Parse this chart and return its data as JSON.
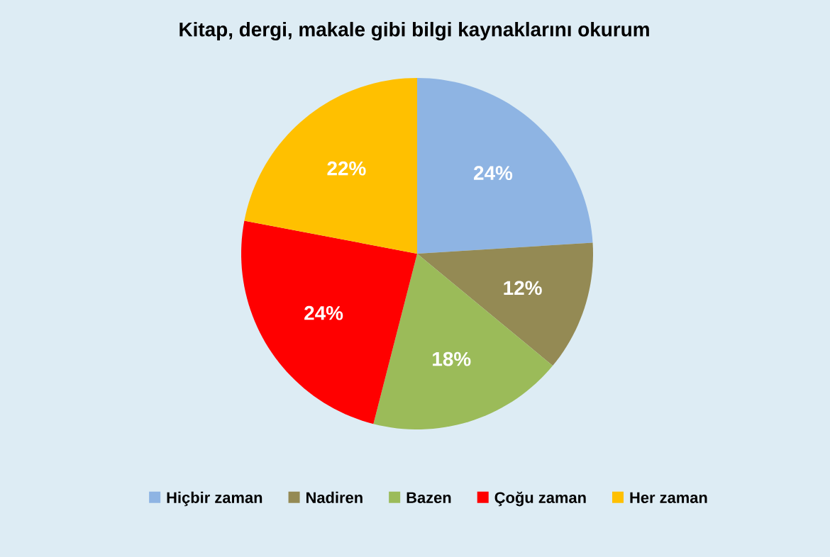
{
  "chart_data": {
    "type": "pie",
    "title": "Kitap, dergi, makale gibi bilgi kaynaklarını okurum",
    "categories": [
      "Hiçbir zaman",
      "Nadiren",
      "Bazen",
      "Çoğu zaman",
      "Her zaman"
    ],
    "values": [
      24,
      12,
      18,
      24,
      22
    ],
    "value_labels": [
      "24%",
      "12%",
      "18%",
      "24%",
      "22%"
    ],
    "colors": [
      "#8eb4e3",
      "#948a54",
      "#9bbb59",
      "#ff0000",
      "#ffc000"
    ],
    "legend": "bottom"
  }
}
